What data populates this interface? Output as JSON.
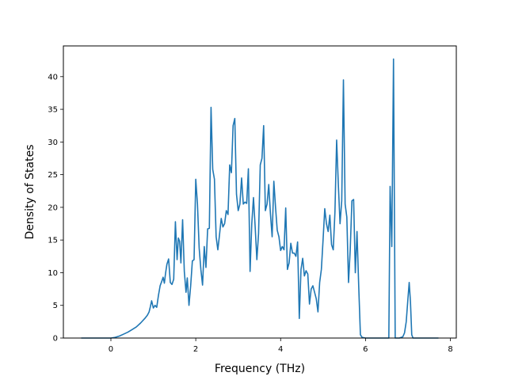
{
  "chart_data": {
    "type": "line",
    "title": "",
    "xlabel": "Frequency (THz)",
    "ylabel": "Density of States",
    "xlim": [
      -1.12,
      8.14
    ],
    "ylim": [
      0,
      44.7
    ],
    "xticks": [
      0,
      2,
      4,
      6,
      8
    ],
    "yticks": [
      0,
      5,
      10,
      15,
      20,
      25,
      30,
      35,
      40
    ],
    "grid": false,
    "legend": "none",
    "series": [
      {
        "color": "#1f77b4",
        "points": [
          [
            -0.7,
            0.0
          ],
          [
            -0.4,
            0.0
          ],
          [
            -0.1,
            0.0
          ],
          [
            0.0,
            0.0
          ],
          [
            0.1,
            0.1
          ],
          [
            0.2,
            0.3
          ],
          [
            0.3,
            0.6
          ],
          [
            0.4,
            0.9
          ],
          [
            0.5,
            1.3
          ],
          [
            0.6,
            1.7
          ],
          [
            0.7,
            2.3
          ],
          [
            0.8,
            3.0
          ],
          [
            0.86,
            3.5
          ],
          [
            0.9,
            4.0
          ],
          [
            0.93,
            4.8
          ],
          [
            0.96,
            5.7
          ],
          [
            1.0,
            4.6
          ],
          [
            1.04,
            5.0
          ],
          [
            1.08,
            4.7
          ],
          [
            1.12,
            6.5
          ],
          [
            1.16,
            8.0
          ],
          [
            1.2,
            8.7
          ],
          [
            1.23,
            9.3
          ],
          [
            1.26,
            8.4
          ],
          [
            1.29,
            10.0
          ],
          [
            1.32,
            11.3
          ],
          [
            1.36,
            12.1
          ],
          [
            1.4,
            8.5
          ],
          [
            1.44,
            8.2
          ],
          [
            1.48,
            9.0
          ],
          [
            1.52,
            17.8
          ],
          [
            1.56,
            12.0
          ],
          [
            1.59,
            15.3
          ],
          [
            1.62,
            14.8
          ],
          [
            1.65,
            11.5
          ],
          [
            1.69,
            18.1
          ],
          [
            1.73,
            10.2
          ],
          [
            1.77,
            7.0
          ],
          [
            1.8,
            9.2
          ],
          [
            1.84,
            5.0
          ],
          [
            1.88,
            8.0
          ],
          [
            1.92,
            11.8
          ],
          [
            1.96,
            12.0
          ],
          [
            2.0,
            24.3
          ],
          [
            2.04,
            20.5
          ],
          [
            2.08,
            13.8
          ],
          [
            2.12,
            10.5
          ],
          [
            2.16,
            8.1
          ],
          [
            2.2,
            14.0
          ],
          [
            2.24,
            10.8
          ],
          [
            2.28,
            16.7
          ],
          [
            2.32,
            16.8
          ],
          [
            2.36,
            35.3
          ],
          [
            2.4,
            25.8
          ],
          [
            2.44,
            24.3
          ],
          [
            2.48,
            15.5
          ],
          [
            2.52,
            13.5
          ],
          [
            2.56,
            15.8
          ],
          [
            2.6,
            18.3
          ],
          [
            2.64,
            17.0
          ],
          [
            2.68,
            17.5
          ],
          [
            2.72,
            19.5
          ],
          [
            2.76,
            18.9
          ],
          [
            2.8,
            26.5
          ],
          [
            2.84,
            25.3
          ],
          [
            2.88,
            32.5
          ],
          [
            2.92,
            33.6
          ],
          [
            2.96,
            22.0
          ],
          [
            3.0,
            19.5
          ],
          [
            3.04,
            20.5
          ],
          [
            3.08,
            24.5
          ],
          [
            3.12,
            20.5
          ],
          [
            3.16,
            20.8
          ],
          [
            3.2,
            20.6
          ],
          [
            3.24,
            25.9
          ],
          [
            3.28,
            10.2
          ],
          [
            3.32,
            17.5
          ],
          [
            3.36,
            21.5
          ],
          [
            3.4,
            17.0
          ],
          [
            3.44,
            12.0
          ],
          [
            3.48,
            16.0
          ],
          [
            3.52,
            26.5
          ],
          [
            3.56,
            27.5
          ],
          [
            3.6,
            32.5
          ],
          [
            3.64,
            19.5
          ],
          [
            3.68,
            20.5
          ],
          [
            3.72,
            23.5
          ],
          [
            3.76,
            19.0
          ],
          [
            3.8,
            15.5
          ],
          [
            3.84,
            24.0
          ],
          [
            3.88,
            20.0
          ],
          [
            3.92,
            16.5
          ],
          [
            3.96,
            15.5
          ],
          [
            4.0,
            13.4
          ],
          [
            4.04,
            14.0
          ],
          [
            4.08,
            13.5
          ],
          [
            4.12,
            19.9
          ],
          [
            4.16,
            10.5
          ],
          [
            4.2,
            11.5
          ],
          [
            4.24,
            14.5
          ],
          [
            4.28,
            13.0
          ],
          [
            4.32,
            13.0
          ],
          [
            4.36,
            12.5
          ],
          [
            4.4,
            14.7
          ],
          [
            4.44,
            3.0
          ],
          [
            4.48,
            10.5
          ],
          [
            4.52,
            12.2
          ],
          [
            4.56,
            9.5
          ],
          [
            4.6,
            10.3
          ],
          [
            4.64,
            9.8
          ],
          [
            4.68,
            5.2
          ],
          [
            4.72,
            7.5
          ],
          [
            4.76,
            8.0
          ],
          [
            4.8,
            7.0
          ],
          [
            4.84,
            6.0
          ],
          [
            4.88,
            4.0
          ],
          [
            4.92,
            8.5
          ],
          [
            4.96,
            10.5
          ],
          [
            5.0,
            15.0
          ],
          [
            5.04,
            19.8
          ],
          [
            5.08,
            17.5
          ],
          [
            5.12,
            16.3
          ],
          [
            5.16,
            18.8
          ],
          [
            5.2,
            14.3
          ],
          [
            5.24,
            13.5
          ],
          [
            5.28,
            19.3
          ],
          [
            5.32,
            30.3
          ],
          [
            5.36,
            23.5
          ],
          [
            5.4,
            17.5
          ],
          [
            5.44,
            21.0
          ],
          [
            5.48,
            39.5
          ],
          [
            5.52,
            20.5
          ],
          [
            5.56,
            18.5
          ],
          [
            5.6,
            8.5
          ],
          [
            5.64,
            13.5
          ],
          [
            5.68,
            21.0
          ],
          [
            5.72,
            21.2
          ],
          [
            5.76,
            10.0
          ],
          [
            5.8,
            16.3
          ],
          [
            5.84,
            8.0
          ],
          [
            5.88,
            0.5
          ],
          [
            5.92,
            0.1
          ],
          [
            6.0,
            0.0
          ],
          [
            6.2,
            0.0
          ],
          [
            6.4,
            0.0
          ],
          [
            6.55,
            0.0
          ],
          [
            6.58,
            23.2
          ],
          [
            6.62,
            14.0
          ],
          [
            6.66,
            42.7
          ],
          [
            6.7,
            0.0
          ],
          [
            6.8,
            0.0
          ],
          [
            6.88,
            0.2
          ],
          [
            6.92,
            0.8
          ],
          [
            6.96,
            2.5
          ],
          [
            7.0,
            6.0
          ],
          [
            7.03,
            8.5
          ],
          [
            7.06,
            5.5
          ],
          [
            7.09,
            0.5
          ],
          [
            7.12,
            0.0
          ],
          [
            7.4,
            0.0
          ],
          [
            7.72,
            0.0
          ]
        ]
      }
    ]
  }
}
